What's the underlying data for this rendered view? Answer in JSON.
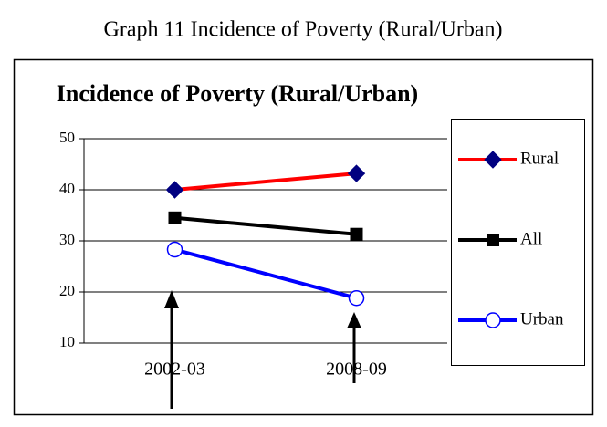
{
  "chart_data": {
    "type": "line",
    "caption": "Graph 11  Incidence of Poverty (Rural/Urban)",
    "title": "Incidence of Poverty (Rural/Urban)",
    "categories": [
      "2002-03",
      "2008-09"
    ],
    "series": [
      {
        "name": "Rural",
        "color": "#ff0000",
        "marker": "diamond",
        "marker_color": "#000080",
        "values": [
          40,
          43.2
        ]
      },
      {
        "name": "All",
        "color": "#000000",
        "marker": "square",
        "marker_color": "#000000",
        "values": [
          34.5,
          31.3
        ]
      },
      {
        "name": "Urban",
        "color": "#0000ff",
        "marker": "circle",
        "marker_color": "#ffffff",
        "values": [
          28.3,
          18.8
        ]
      }
    ],
    "ylim": [
      10,
      50
    ],
    "yticks": [
      10,
      20,
      30,
      40,
      50
    ],
    "grid": true,
    "legend": "right"
  }
}
